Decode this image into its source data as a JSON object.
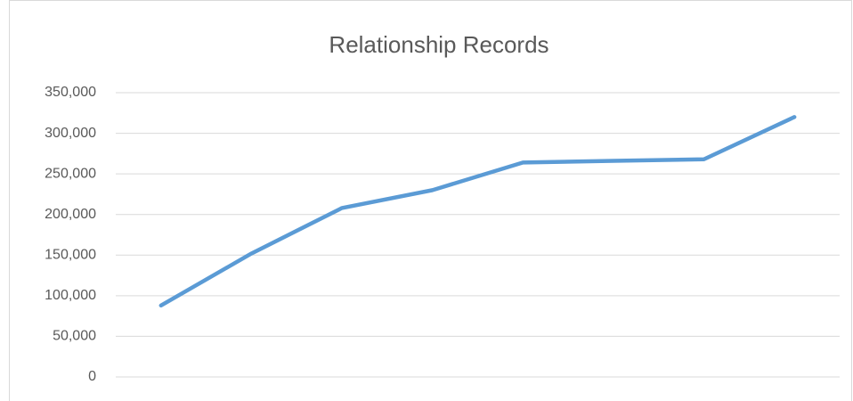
{
  "chart_data": {
    "type": "line",
    "title": "Relationship Records",
    "categories": [
      null,
      null,
      null,
      null,
      null,
      null,
      null,
      null
    ],
    "series": [
      {
        "name": null,
        "color": "#5b9bd5",
        "values": [
          88000,
          152000,
          208000,
          230000,
          264000,
          266000,
          268000,
          320000
        ]
      }
    ],
    "ylim": [
      0,
      350000
    ],
    "yticks": [
      0,
      {
        "value": 50000,
        "label": "50,000"
      },
      {
        "value": 100000,
        "label": "100,000"
      },
      {
        "value": 150000,
        "label": "150,000"
      },
      {
        "value": 200000,
        "label": "200,000"
      },
      {
        "value": 250000,
        "label": "250,000"
      },
      {
        "value": 300000,
        "label": "300,000"
      },
      {
        "value": 350000,
        "label": "350,000"
      }
    ],
    "grid": true
  }
}
